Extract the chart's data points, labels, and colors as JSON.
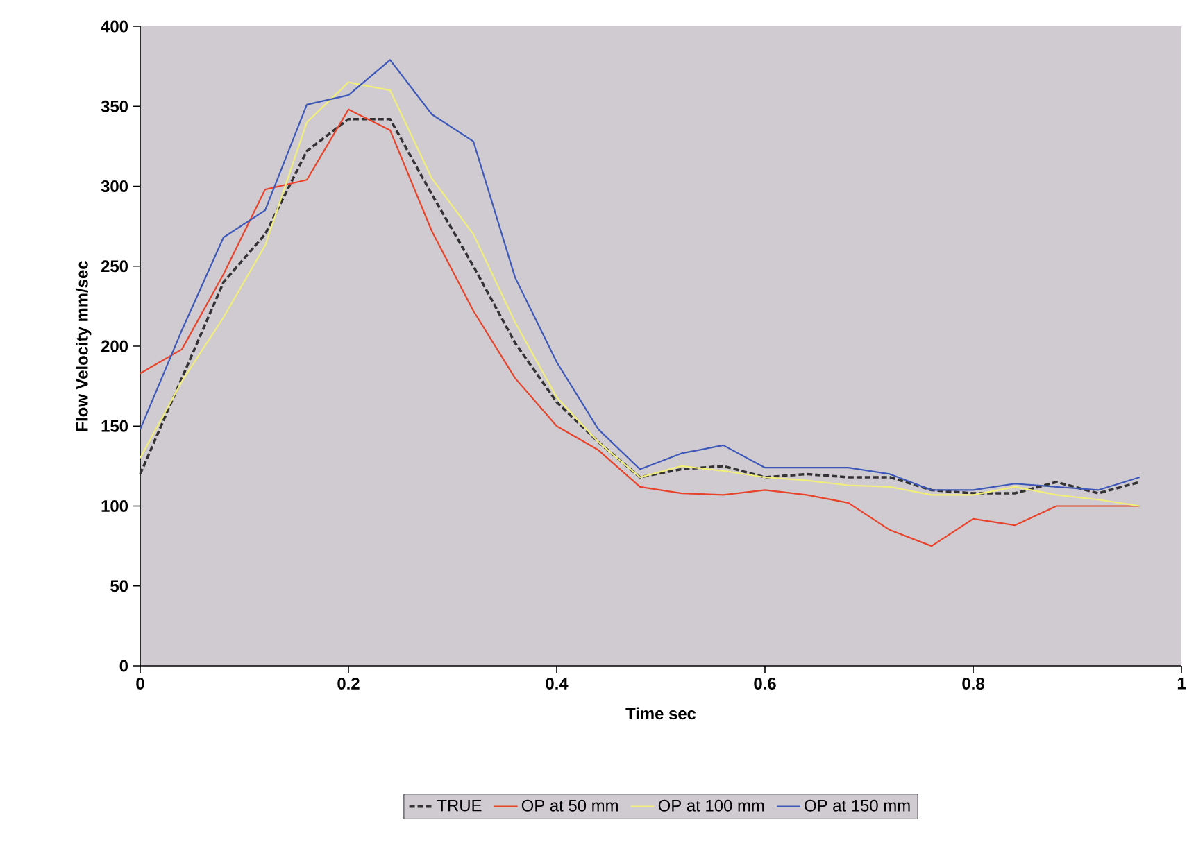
{
  "chart_data": {
    "type": "line",
    "xlabel": "Time sec",
    "ylabel": "Flow Velocity mm/sec",
    "x": [
      0,
      0.04,
      0.08,
      0.12,
      0.16,
      0.2,
      0.24,
      0.28,
      0.32,
      0.36,
      0.4,
      0.44,
      0.48,
      0.52,
      0.56,
      0.6,
      0.64,
      0.68,
      0.72,
      0.76,
      0.8,
      0.84,
      0.88,
      0.92,
      0.96
    ],
    "series": [
      {
        "name": "TRUE",
        "color": "#333333",
        "line_style": "dashed",
        "values": [
          120,
          180,
          240,
          270,
          322,
          342,
          342,
          295,
          250,
          202,
          165,
          140,
          118,
          123,
          125,
          118,
          120,
          118,
          118,
          110,
          108,
          108,
          115,
          108,
          115
        ]
      },
      {
        "name": "OP at 50 mm",
        "color": "#e8432a",
        "line_style": "solid",
        "values": [
          183,
          198,
          245,
          298,
          304,
          348,
          335,
          272,
          222,
          180,
          150,
          135,
          112,
          108,
          107,
          110,
          107,
          102,
          85,
          75,
          92,
          88,
          100,
          100,
          100
        ]
      },
      {
        "name": "OP at 100 mm",
        "color": "#f2ee7a",
        "line_style": "solid",
        "values": [
          130,
          178,
          218,
          263,
          340,
          365,
          360,
          305,
          270,
          215,
          168,
          140,
          118,
          125,
          122,
          118,
          116,
          113,
          112,
          107,
          107,
          112,
          107,
          104,
          100
        ]
      },
      {
        "name": "OP at 150 mm",
        "color": "#3d58b8",
        "line_style": "solid",
        "values": [
          148,
          210,
          268,
          285,
          351,
          357,
          379,
          345,
          328,
          243,
          190,
          148,
          123,
          133,
          138,
          124,
          124,
          124,
          120,
          110,
          110,
          114,
          112,
          110,
          118
        ]
      }
    ],
    "xlim": [
      0,
      1
    ],
    "ylim": [
      0,
      400
    ],
    "xticks": [
      0,
      0.2,
      0.4,
      0.6,
      0.8,
      1
    ],
    "yticks": [
      0,
      50,
      100,
      150,
      200,
      250,
      300,
      350,
      400
    ],
    "grid": false,
    "legend": "bottom",
    "marker": "none"
  }
}
